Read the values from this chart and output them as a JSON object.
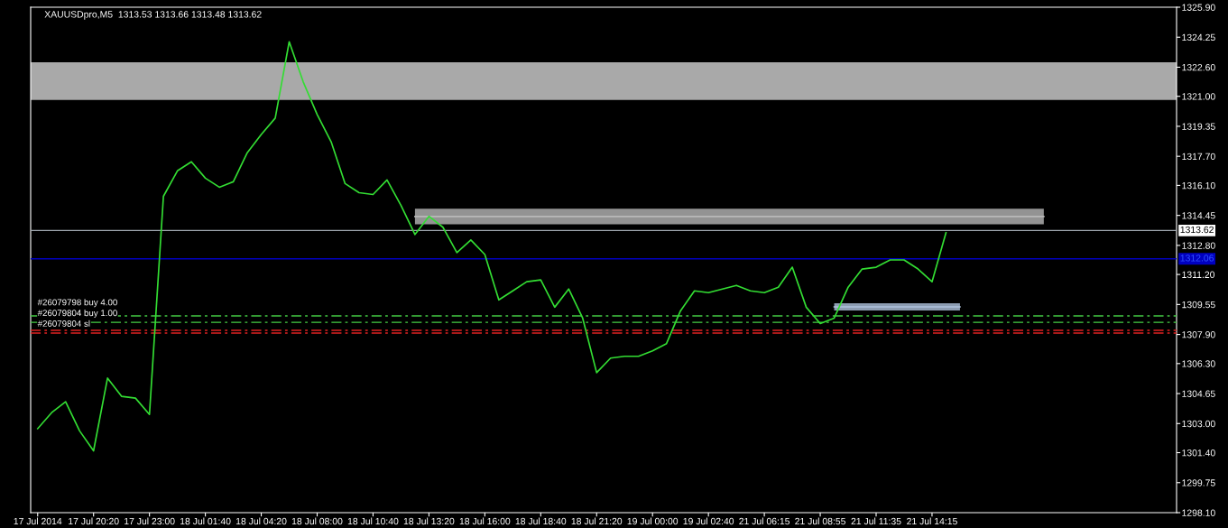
{
  "chart_data": {
    "type": "line",
    "title": "XAUUSDpro,M5  1313.53 1313.66 1313.48 1313.62",
    "categories": [
      "17 Jul 2014",
      null,
      null,
      null,
      "17 Jul 20:20",
      null,
      null,
      null,
      "17 Jul 23:00",
      null,
      null,
      null,
      "18 Jul 01:40",
      null,
      null,
      null,
      "18 Jul 04:20",
      null,
      null,
      null,
      "18 Jul 08:00",
      null,
      null,
      null,
      "18 Jul 10:40",
      null,
      null,
      null,
      "18 Jul 13:20",
      null,
      null,
      null,
      "18 Jul 16:00",
      null,
      null,
      null,
      "18 Jul 18:40",
      null,
      null,
      null,
      "18 Jul 21:20",
      null,
      null,
      null,
      "19 Jul 00:00",
      null,
      null,
      null,
      "19 Jul 02:40",
      null,
      null,
      null,
      "21 Jul 06:15",
      null,
      null,
      null,
      "21 Jul 08:55",
      null,
      null,
      null,
      "21 Jul 11:35",
      null,
      null,
      null,
      "21 Jul 14:15",
      null,
      null,
      null,
      null,
      null,
      null,
      null,
      null,
      null,
      null,
      null,
      null,
      null,
      null,
      null,
      null,
      null
    ],
    "ylim": [
      1298.1,
      1325.9
    ],
    "yticks": [
      {
        "value": 1298.1,
        "label": "1298.10"
      },
      {
        "value": 1299.75,
        "label": "1299.75"
      },
      {
        "value": 1301.4,
        "label": "1301.40"
      },
      {
        "value": 1303.0,
        "label": "1303.00"
      },
      {
        "value": 1304.65,
        "label": "1304.65"
      },
      {
        "value": 1306.3,
        "label": "1306.30"
      },
      {
        "value": 1307.9,
        "label": "1307.90"
      },
      {
        "value": 1309.55,
        "label": "1309.55"
      },
      {
        "value": 1311.2,
        "label": "1311.20"
      },
      {
        "value": 1312.8,
        "label": "1312.80"
      },
      {
        "value": 1314.45,
        "label": "1314.45"
      },
      {
        "value": 1316.1,
        "label": "1316.10"
      },
      {
        "value": 1317.7,
        "label": "1317.70"
      },
      {
        "value": 1319.35,
        "label": "1319.35"
      },
      {
        "value": 1321.0,
        "label": "1321.00"
      },
      {
        "value": 1322.6,
        "label": "1322.60"
      },
      {
        "value": 1324.25,
        "label": "1324.25"
      },
      {
        "value": 1325.9,
        "label": "1325.90"
      }
    ],
    "grid": false,
    "series": [
      {
        "type": "line",
        "color": "#b8b8b8",
        "values": [
          null,
          null,
          null,
          null,
          null,
          null,
          null,
          null,
          null,
          null,
          null,
          null,
          null,
          null,
          null,
          null,
          null,
          null,
          null,
          null,
          null,
          null,
          null,
          null,
          null,
          null,
          null,
          1314.39,
          1314.39,
          1314.39,
          1314.39,
          1314.39,
          1314.39,
          1314.39,
          1314.39,
          1314.39,
          1314.39,
          1314.39,
          1314.39,
          1314.39,
          1314.39,
          1314.39,
          1314.39,
          1314.39,
          1314.39,
          1314.39,
          1314.39,
          1314.39,
          1314.39,
          1314.39,
          1314.39,
          1314.39,
          1314.39,
          1314.39,
          1314.39,
          1314.39,
          1314.39,
          1314.39,
          1314.39,
          1314.39,
          1314.39,
          1314.39,
          1314.39,
          1314.39,
          1314.39,
          1314.39,
          1314.39,
          1314.39,
          1314.39,
          1314.39,
          1314.39,
          1314.39,
          1314.39,
          null,
          null,
          null,
          null,
          null,
          null,
          null,
          null,
          null
        ],
        "upper": [
          null,
          null,
          null,
          null,
          null,
          null,
          null,
          null,
          null,
          null,
          null,
          null,
          null,
          null,
          null,
          null,
          null,
          null,
          null,
          null,
          null,
          null,
          null,
          null,
          null,
          null,
          null,
          1314.82,
          1314.82,
          1314.82,
          1314.82,
          1314.82,
          1314.82,
          1314.82,
          1314.82,
          1314.82,
          1314.82,
          1314.82,
          1314.82,
          1314.82,
          1314.82,
          1314.82,
          1314.82,
          1314.82,
          1314.82,
          1314.82,
          1314.82,
          1314.82,
          1314.82,
          1314.82,
          1314.82,
          1314.82,
          1314.82,
          1314.82,
          1314.82,
          1314.82,
          1314.82,
          1314.82,
          1314.82,
          1314.82,
          1314.82,
          1314.82,
          1314.82,
          1314.82,
          1314.82,
          1314.82,
          1314.82,
          1314.82,
          1314.82,
          1314.82,
          1314.82,
          1314.82,
          1314.82,
          null,
          null,
          null,
          null,
          null,
          null,
          null,
          null,
          null
        ],
        "lower": [
          null,
          null,
          null,
          null,
          null,
          null,
          null,
          null,
          null,
          null,
          null,
          null,
          null,
          null,
          null,
          null,
          null,
          null,
          null,
          null,
          null,
          null,
          null,
          null,
          null,
          null,
          null,
          1313.96,
          1313.96,
          1313.96,
          1313.96,
          1313.96,
          1313.96,
          1313.96,
          1313.96,
          1313.96,
          1313.96,
          1313.96,
          1313.96,
          1313.96,
          1313.96,
          1313.96,
          1313.96,
          1313.96,
          1313.96,
          1313.96,
          1313.96,
          1313.96,
          1313.96,
          1313.96,
          1313.96,
          1313.96,
          1313.96,
          1313.96,
          1313.96,
          1313.96,
          1313.96,
          1313.96,
          1313.96,
          1313.96,
          1313.96,
          1313.96,
          1313.96,
          1313.96,
          1313.96,
          1313.96,
          1313.96,
          1313.96,
          1313.96,
          1313.96,
          1313.96,
          1313.96,
          1313.96,
          null,
          null,
          null,
          null,
          null,
          null,
          null,
          null,
          null
        ]
      },
      {
        "type": "line",
        "color": "#b0c4de",
        "values": [
          null,
          null,
          null,
          null,
          null,
          null,
          null,
          null,
          null,
          null,
          null,
          null,
          null,
          null,
          null,
          null,
          null,
          null,
          null,
          null,
          null,
          null,
          null,
          null,
          null,
          null,
          null,
          null,
          null,
          null,
          null,
          null,
          null,
          null,
          null,
          null,
          null,
          null,
          null,
          null,
          null,
          null,
          null,
          null,
          null,
          null,
          null,
          null,
          null,
          null,
          null,
          null,
          null,
          null,
          null,
          null,
          null,
          1309.42,
          1309.42,
          1309.42,
          1309.42,
          1309.42,
          1309.42,
          1309.42,
          1309.42,
          1309.42,
          1309.42,
          null,
          null,
          null,
          null,
          null,
          null,
          null,
          null,
          null,
          null,
          null,
          null,
          null,
          null,
          null
        ],
        "upper": [
          null,
          null,
          null,
          null,
          null,
          null,
          null,
          null,
          null,
          null,
          null,
          null,
          null,
          null,
          null,
          null,
          null,
          null,
          null,
          null,
          null,
          null,
          null,
          null,
          null,
          null,
          null,
          null,
          null,
          null,
          null,
          null,
          null,
          null,
          null,
          null,
          null,
          null,
          null,
          null,
          null,
          null,
          null,
          null,
          null,
          null,
          null,
          null,
          null,
          null,
          null,
          null,
          null,
          null,
          null,
          null,
          null,
          1309.62,
          1309.62,
          1309.62,
          1309.62,
          1309.62,
          1309.62,
          1309.62,
          1309.62,
          1309.62,
          1309.62,
          null,
          null,
          null,
          null,
          null,
          null,
          null,
          null,
          null,
          null,
          null,
          null,
          null,
          null,
          null
        ],
        "lower": [
          null,
          null,
          null,
          null,
          null,
          null,
          null,
          null,
          null,
          null,
          null,
          null,
          null,
          null,
          null,
          null,
          null,
          null,
          null,
          null,
          null,
          null,
          null,
          null,
          null,
          null,
          null,
          null,
          null,
          null,
          null,
          null,
          null,
          null,
          null,
          null,
          null,
          null,
          null,
          null,
          null,
          null,
          null,
          null,
          null,
          null,
          null,
          null,
          null,
          null,
          null,
          null,
          null,
          null,
          null,
          null,
          null,
          1309.22,
          1309.22,
          1309.22,
          1309.22,
          1309.22,
          1309.22,
          1309.22,
          1309.22,
          1309.22,
          1309.22,
          null,
          null,
          null,
          null,
          null,
          null,
          null,
          null,
          null,
          null,
          null,
          null,
          null,
          null,
          null
        ]
      },
      {
        "color": "#33dd33",
        "values": [
          1302.72,
          1303.6,
          1304.2,
          1302.6,
          1301.5,
          1305.5,
          1304.5,
          1304.4,
          1303.5,
          1315.5,
          1316.9,
          1317.4,
          1316.5,
          1316.0,
          1316.3,
          1317.9,
          1318.9,
          1319.8,
          1324.0,
          1321.8,
          1320.0,
          1318.5,
          1316.2,
          1315.7,
          1315.6,
          1316.4,
          1315.0,
          1313.4,
          1314.4,
          1313.8,
          1312.4,
          1313.1,
          1312.3,
          1309.8,
          1310.3,
          1310.8,
          1310.9,
          1309.4,
          1310.4,
          1308.8,
          1305.8,
          1306.6,
          1306.7,
          1306.7,
          1307.0,
          1307.4,
          1309.2,
          1310.3,
          1310.2,
          1310.4,
          1310.6,
          1310.3,
          1310.2,
          1310.5,
          1311.6,
          1309.4,
          1308.5,
          1308.8,
          1310.5,
          1311.5,
          1311.6,
          1312.0,
          1312.0,
          1311.5,
          1310.8,
          1313.5,
          null,
          null,
          null,
          null,
          null,
          null,
          null,
          null,
          null,
          null,
          null,
          null,
          null,
          null,
          null,
          null
        ]
      }
    ],
    "bands": [
      {
        "axis": "y",
        "from": 1320.8,
        "to": 1322.87,
        "color": "#a9a9a9"
      }
    ],
    "ref_lines": [
      {
        "axis": "y",
        "value": 1313.62,
        "label": "1313.62",
        "color": "#a0a8b0",
        "line_style": "solid"
      },
      {
        "axis": "y",
        "value": 1312.06,
        "label": "1312.06",
        "color": "#0000c0",
        "line_style": "solid"
      },
      {
        "axis": "y",
        "value": 1308.92,
        "label": "#26079798 buy 4.00",
        "color": "#44cc44",
        "line_style": "dashed"
      },
      {
        "axis": "y",
        "value": 1308.57,
        "label": "#26079804 buy 1.00",
        "color": "#44cc44",
        "line_style": "dashed"
      },
      {
        "axis": "y",
        "value": 1308.13,
        "label": "#26079804 sl",
        "color": "#dd2222",
        "line_style": "dashed"
      },
      {
        "axis": "y",
        "value": 1307.98,
        "color": "#dd2222",
        "line_style": "dashed"
      }
    ]
  }
}
